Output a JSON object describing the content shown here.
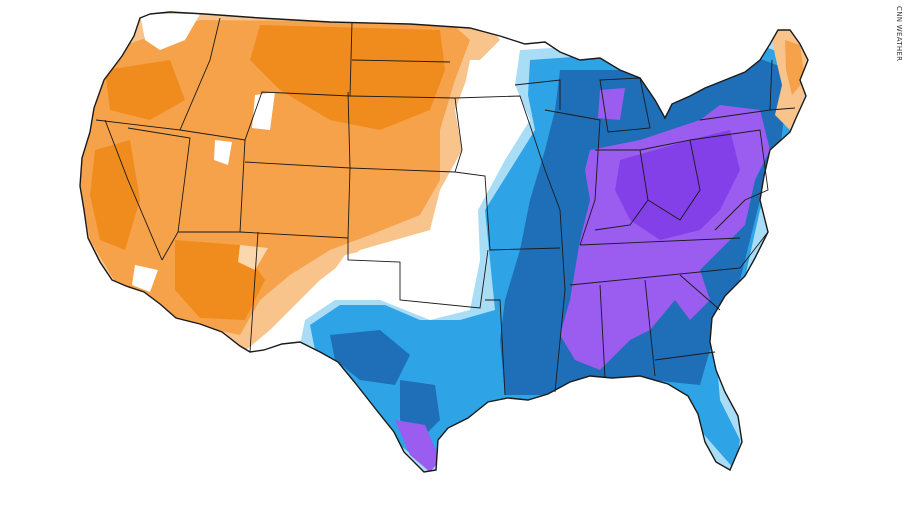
{
  "credit": "CNN WEATHER",
  "map": {
    "subject": "contiguous-united-states",
    "colors": {
      "warm_dark": "#f08c1e",
      "warm": "#f6a24a",
      "warm_light": "#f9c48c",
      "neutral": "#ffffff",
      "cool_light": "#a9dcf5",
      "cool": "#2ea3e6",
      "cool_dark": "#1f6fb8",
      "cold": "#9b5cf0",
      "cold_dark": "#8440e8",
      "border": "#1a1a1a"
    }
  }
}
